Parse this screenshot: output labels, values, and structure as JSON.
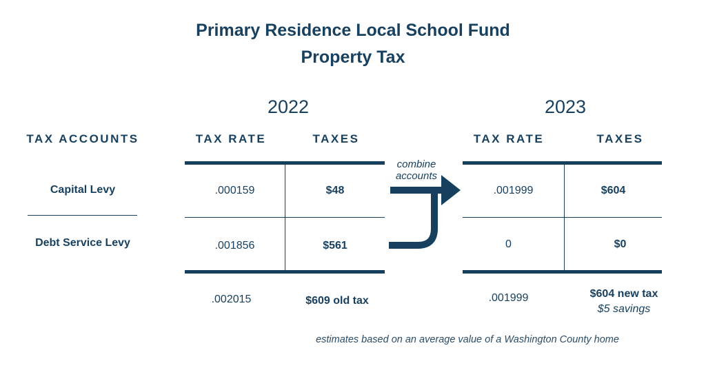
{
  "title": {
    "line1": "Primary Residence Local School Fund",
    "line2": "Property Tax"
  },
  "column_headers": {
    "accounts": "TAX ACCOUNTS",
    "rate": "TAX RATE",
    "taxes": "TAXES"
  },
  "rows": [
    {
      "label": "Capital Levy"
    },
    {
      "label": "Debt Service Levy"
    }
  ],
  "year_2022": {
    "year": "2022",
    "rows": [
      {
        "rate": ".000159",
        "tax": "$48"
      },
      {
        "rate": ".001856",
        "tax": "$561"
      }
    ],
    "total_rate": ".002015",
    "total_tax": "$609 old tax"
  },
  "year_2023": {
    "year": "2023",
    "rows": [
      {
        "rate": ".001999",
        "tax": "$604"
      },
      {
        "rate": "0",
        "tax": "$0"
      }
    ],
    "total_rate": ".001999",
    "total_tax": "$604 new tax",
    "savings": "$5 savings"
  },
  "arrow_note": {
    "line1": "combine",
    "line2": "accounts"
  },
  "footnote": "estimates based on an average value of a Washington County home",
  "colors": {
    "navy": "#16405e"
  }
}
